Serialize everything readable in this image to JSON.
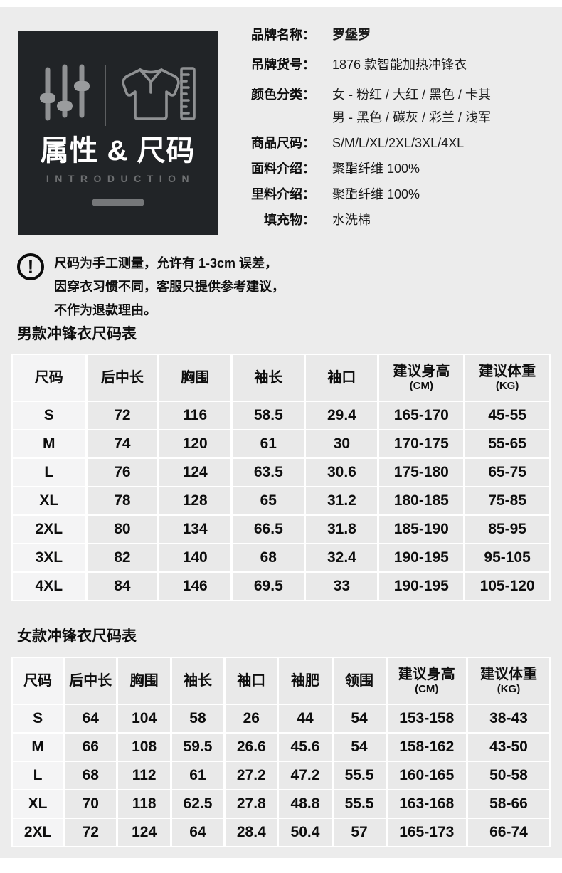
{
  "colors": {
    "page_bg": "#ececec",
    "card_bg": "#212427",
    "cell_bg": "#e9e9e9",
    "first_col_bg": "#f4f4f5",
    "icon_gray": "#8f9193"
  },
  "intro_card": {
    "title": "属性 & 尺码",
    "subtitle": "INTRODUCTION",
    "icons": [
      "sliders-icon",
      "tshirt-ruler-icon"
    ]
  },
  "product_info": {
    "rows": [
      {
        "label": "品牌名称：",
        "value": "罗堡罗"
      },
      {
        "label": "吊牌货号：",
        "value": "1876 款智能加热冲锋衣"
      },
      {
        "label": "颜色分类：",
        "value": "女 - 粉红 / 大红 / 黑色 / 卡其"
      },
      {
        "label": "",
        "value": "男 - 黑色 / 碳灰 / 彩兰 / 浅军"
      },
      {
        "label": "商品尺码：",
        "value": "S/M/L/XL/2XL/3XL/4XL"
      },
      {
        "label": "面料介绍：",
        "value": "聚酯纤维 100%"
      },
      {
        "label": "里料介绍：",
        "value": "聚酯纤维 100%"
      },
      {
        "label": "填充物：",
        "value": "水洗棉"
      }
    ]
  },
  "notice": {
    "lines": [
      "尺码为手工测量，允许有 1-3cm 误差，",
      "因穿衣习惯不同，客服只提供参考建议，",
      "不作为退款理由。"
    ]
  },
  "tables": {
    "men": {
      "title": "男款冲锋衣尺码表",
      "headers": [
        {
          "label": "尺码"
        },
        {
          "label": "后中长"
        },
        {
          "label": "胸围"
        },
        {
          "label": "袖长"
        },
        {
          "label": "袖口"
        },
        {
          "label": "建议身高",
          "sub": "(CM)"
        },
        {
          "label": "建议体重",
          "sub": "(KG)"
        }
      ],
      "rows": [
        [
          "S",
          "72",
          "116",
          "58.5",
          "29.4",
          "165-170",
          "45-55"
        ],
        [
          "M",
          "74",
          "120",
          "61",
          "30",
          "170-175",
          "55-65"
        ],
        [
          "L",
          "76",
          "124",
          "63.5",
          "30.6",
          "175-180",
          "65-75"
        ],
        [
          "XL",
          "78",
          "128",
          "65",
          "31.2",
          "180-185",
          "75-85"
        ],
        [
          "2XL",
          "80",
          "134",
          "66.5",
          "31.8",
          "185-190",
          "85-95"
        ],
        [
          "3XL",
          "82",
          "140",
          "68",
          "32.4",
          "190-195",
          "95-105"
        ],
        [
          "4XL",
          "84",
          "146",
          "69.5",
          "33",
          "190-195",
          "105-120"
        ]
      ]
    },
    "women": {
      "title": "女款冲锋衣尺码表",
      "headers": [
        {
          "label": "尺码"
        },
        {
          "label": "后中长"
        },
        {
          "label": "胸围"
        },
        {
          "label": "袖长"
        },
        {
          "label": "袖口"
        },
        {
          "label": "袖肥"
        },
        {
          "label": "领围"
        },
        {
          "label": "建议身高",
          "sub": "(CM)"
        },
        {
          "label": "建议体重",
          "sub": "(KG)"
        }
      ],
      "rows": [
        [
          "S",
          "64",
          "104",
          "58",
          "26",
          "44",
          "54",
          "153-158",
          "38-43"
        ],
        [
          "M",
          "66",
          "108",
          "59.5",
          "26.6",
          "45.6",
          "54",
          "158-162",
          "43-50"
        ],
        [
          "L",
          "68",
          "112",
          "61",
          "27.2",
          "47.2",
          "55.5",
          "160-165",
          "50-58"
        ],
        [
          "XL",
          "70",
          "118",
          "62.5",
          "27.8",
          "48.8",
          "55.5",
          "163-168",
          "58-66"
        ],
        [
          "2XL",
          "72",
          "124",
          "64",
          "28.4",
          "50.4",
          "57",
          "165-173",
          "66-74"
        ]
      ]
    }
  }
}
